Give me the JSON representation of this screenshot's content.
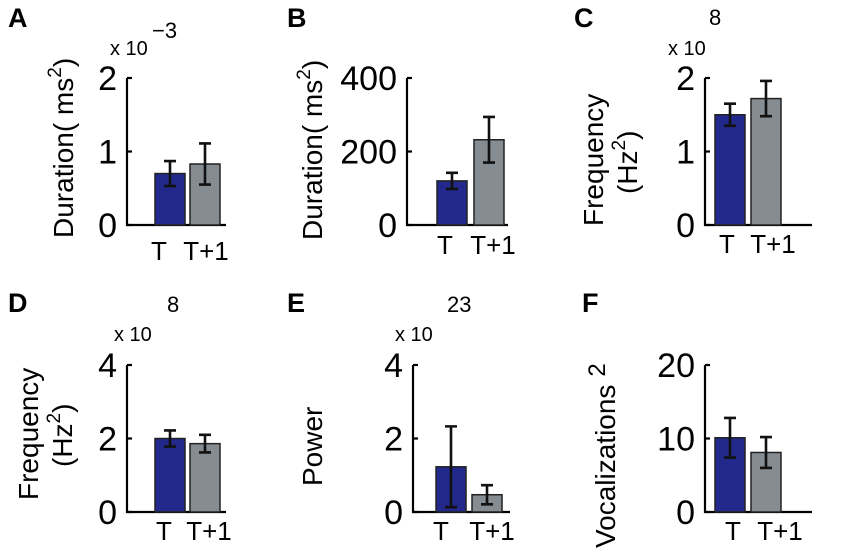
{
  "colors": {
    "T": "#23298c",
    "T+1": "#858c92",
    "error": "#111111"
  },
  "chart_data": [
    {
      "panel": "A",
      "type": "bar",
      "categories": [
        "T",
        "T+1"
      ],
      "values": [
        0.7,
        0.83
      ],
      "errors": [
        0.17,
        0.28
      ],
      "ylabel_main": "Duration( ms",
      "ylabel_sup": "2",
      "ylabel_close": ")",
      "ylim": [
        0,
        2
      ],
      "yticks": [
        0,
        1,
        2
      ],
      "ytick_labels": [
        "0",
        "1",
        "2"
      ],
      "exponent_base": "x 10",
      "exponent_power": "−3"
    },
    {
      "panel": "B",
      "type": "bar",
      "categories": [
        "T",
        "T+1"
      ],
      "values": [
        120,
        232
      ],
      "errors": [
        22,
        62
      ],
      "ylabel_main": "Duration( ms",
      "ylabel_sup": "2",
      "ylabel_close": ")",
      "ylim": [
        0,
        400
      ],
      "yticks": [
        0,
        200,
        400
      ],
      "ytick_labels": [
        "0",
        "200",
        "400"
      ],
      "exponent_base": "",
      "exponent_power": ""
    },
    {
      "panel": "C",
      "type": "bar",
      "categories": [
        "T",
        "T+1"
      ],
      "values": [
        1.5,
        1.72
      ],
      "errors": [
        0.15,
        0.24
      ],
      "ylabel_line1": "Frequency",
      "ylabel_line2_main": "(Hz",
      "ylabel_sup": "2",
      "ylabel_close": ")",
      "ylim": [
        0,
        2
      ],
      "yticks": [
        0,
        1,
        2
      ],
      "ytick_labels": [
        "0",
        "1",
        "2"
      ],
      "exponent_base": "x 10",
      "exponent_power": "8"
    },
    {
      "panel": "D",
      "type": "bar",
      "categories": [
        "T",
        "T+1"
      ],
      "values": [
        2.0,
        1.86
      ],
      "errors": [
        0.22,
        0.24
      ],
      "ylabel_line1": "Frequency",
      "ylabel_line2_main": "(Hz",
      "ylabel_sup": "2",
      "ylabel_close": ")",
      "ylim": [
        0,
        4
      ],
      "yticks": [
        0,
        2,
        4
      ],
      "ytick_labels": [
        "0",
        "2",
        "4"
      ],
      "exponent_base": "x 10",
      "exponent_power": "8"
    },
    {
      "panel": "E",
      "type": "bar",
      "categories": [
        "T",
        "T+1"
      ],
      "values": [
        1.23,
        0.47
      ],
      "errors": [
        1.1,
        0.26
      ],
      "ylabel_main": "Power",
      "ylabel_sup": "",
      "ylabel_close": "",
      "ylim": [
        0,
        4
      ],
      "yticks": [
        0,
        2,
        4
      ],
      "ytick_labels": [
        "0",
        "2",
        "4"
      ],
      "exponent_base": "x 10",
      "exponent_power": "23"
    },
    {
      "panel": "F",
      "type": "bar",
      "categories": [
        "T",
        "T+1"
      ],
      "values": [
        10.1,
        8.1
      ],
      "errors": [
        2.7,
        2.1
      ],
      "ylabel_main": "Vocalizations",
      "ylabel_sup": "2",
      "ylabel_close": "",
      "ylim": [
        0,
        20
      ],
      "yticks": [
        0,
        10,
        20
      ],
      "ytick_labels": [
        "0",
        "10",
        "20"
      ],
      "exponent_base": "",
      "exponent_power": ""
    }
  ]
}
